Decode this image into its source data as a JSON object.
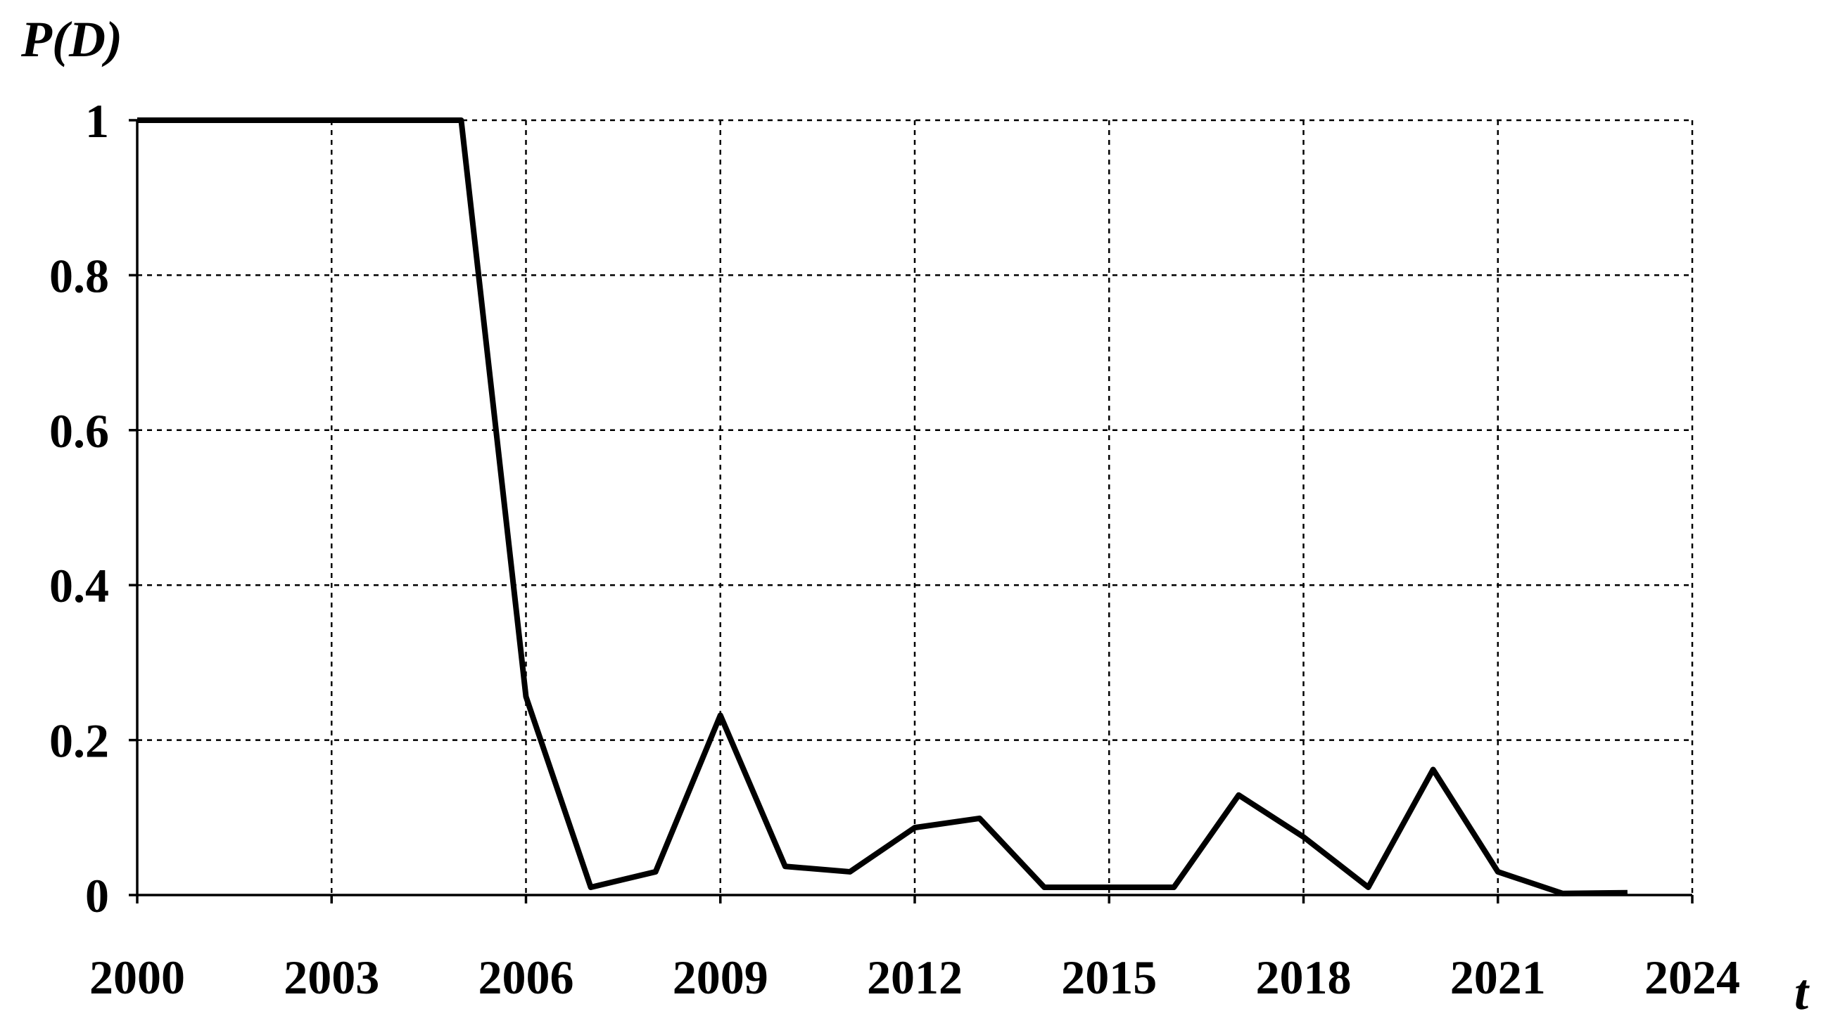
{
  "chart_data": {
    "type": "line",
    "y_label": "P(D)",
    "x_label": "t",
    "x": [
      2000,
      2001,
      2002,
      2003,
      2004,
      2005,
      2006,
      2007,
      2008,
      2009,
      2010,
      2011,
      2012,
      2013,
      2014,
      2015,
      2016,
      2017,
      2018,
      2019,
      2020,
      2021,
      2022,
      2023
    ],
    "series": [
      {
        "color": "#000000",
        "values": [
          1,
          1,
          1,
          1,
          1,
          1,
          0.256,
          0.01,
          0.03,
          0.232,
          0.037,
          0.03,
          0.087,
          0.099,
          0.01,
          0.01,
          0.01,
          0.129,
          0.075,
          0.01,
          0.162,
          0.03,
          0.002,
          0.003
        ]
      }
    ],
    "xlim": [
      2000,
      2024
    ],
    "xticks": [
      2000,
      2003,
      2006,
      2009,
      2012,
      2015,
      2018,
      2021,
      2024
    ],
    "ylim": [
      0,
      1
    ],
    "yticks": [
      0,
      0.2,
      0.4,
      0.6,
      0.8,
      1
    ],
    "grid": true
  }
}
